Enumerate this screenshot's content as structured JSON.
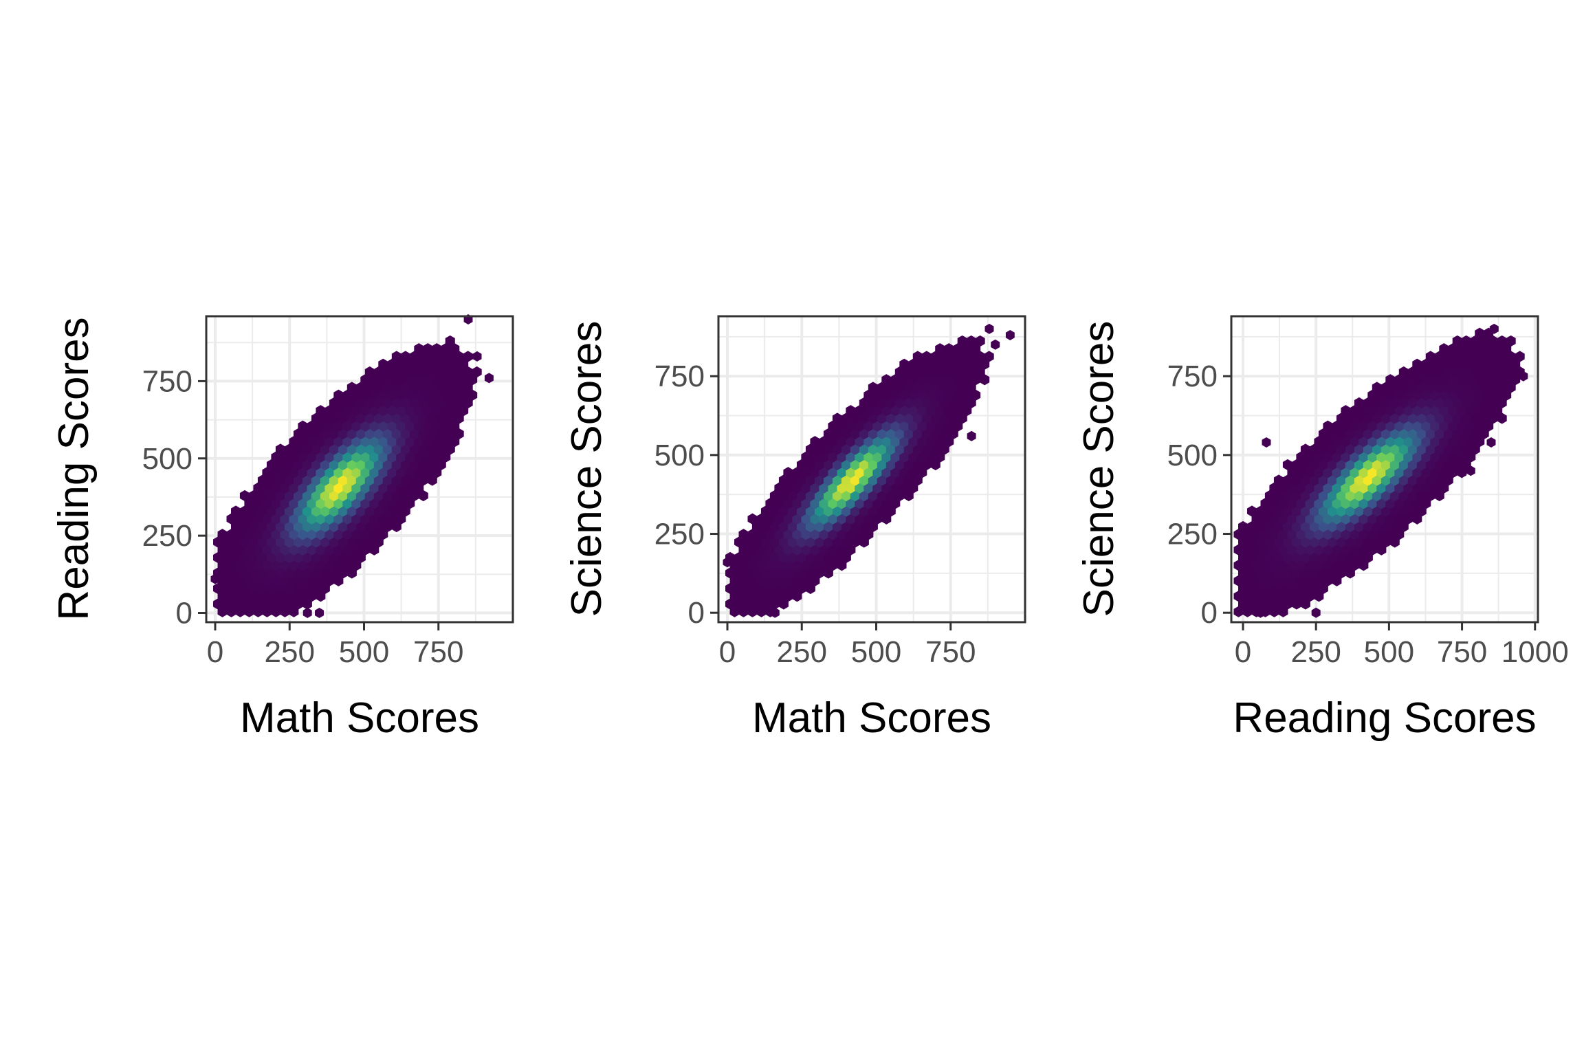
{
  "chart_data": [
    {
      "type": "hexbin",
      "xlabel": "Math Scores",
      "ylabel": "Reading Scores",
      "xlim": [
        -30,
        1000
      ],
      "ylim": [
        -30,
        960
      ],
      "xticks": [
        0,
        250,
        500,
        750
      ],
      "xtick_labels": [
        "0",
        "250",
        "500",
        "750"
      ],
      "yticks": [
        0,
        250,
        500,
        750
      ],
      "ytick_labels": [
        "0",
        "250",
        "500",
        "750"
      ],
      "grid": true,
      "colormap": "viridis",
      "density": {
        "center": [
          420,
          410
        ],
        "sd": [
          140,
          145
        ],
        "rho": 0.75
      },
      "data_extent": {
        "x": [
          0,
          960
        ],
        "y": [
          0,
          960
        ]
      },
      "outliers": [
        [
          0,
          110
        ],
        [
          100,
          300
        ],
        [
          310,
          0
        ],
        [
          350,
          0
        ],
        [
          920,
          760
        ],
        [
          880,
          830
        ],
        [
          850,
          950
        ],
        [
          630,
          390
        ],
        [
          600,
          330
        ]
      ]
    },
    {
      "type": "hexbin",
      "xlabel": "Math Scores",
      "ylabel": "Science Scores",
      "xlim": [
        -30,
        1000
      ],
      "ylim": [
        -30,
        940
      ],
      "xticks": [
        0,
        250,
        500,
        750
      ],
      "xtick_labels": [
        "0",
        "250",
        "500",
        "750"
      ],
      "yticks": [
        0,
        250,
        500,
        750
      ],
      "ytick_labels": [
        "0",
        "250",
        "500",
        "750"
      ],
      "grid": true,
      "colormap": "viridis",
      "density": {
        "center": [
          420,
          420
        ],
        "sd": [
          140,
          140
        ],
        "rho": 0.85
      },
      "data_extent": {
        "x": [
          0,
          960
        ],
        "y": [
          0,
          910
        ]
      },
      "outliers": [
        [
          0,
          160
        ],
        [
          60,
          180
        ],
        [
          160,
          0
        ],
        [
          950,
          880
        ],
        [
          880,
          900
        ],
        [
          900,
          850
        ],
        [
          820,
          560
        ]
      ]
    },
    {
      "type": "hexbin",
      "xlabel": "Reading Scores",
      "ylabel": "Science Scores",
      "xlim": [
        -40,
        1010
      ],
      "ylim": [
        -30,
        940
      ],
      "xticks": [
        0,
        250,
        500,
        750,
        1000
      ],
      "xtick_labels": [
        "0",
        "250",
        "500",
        "750",
        "1000"
      ],
      "yticks": [
        0,
        250,
        500,
        750
      ],
      "ytick_labels": [
        "0",
        "250",
        "500",
        "750"
      ],
      "grid": true,
      "colormap": "viridis",
      "density": {
        "center": [
          430,
          430
        ],
        "sd": [
          160,
          140
        ],
        "rho": 0.8
      },
      "data_extent": {
        "x": [
          -20,
          1000
        ],
        "y": [
          0,
          910
        ]
      },
      "outliers": [
        [
          80,
          540
        ],
        [
          60,
          0
        ],
        [
          250,
          0
        ],
        [
          960,
          750
        ],
        [
          860,
          900
        ],
        [
          900,
          800
        ],
        [
          850,
          540
        ],
        [
          780,
          450
        ]
      ]
    }
  ]
}
